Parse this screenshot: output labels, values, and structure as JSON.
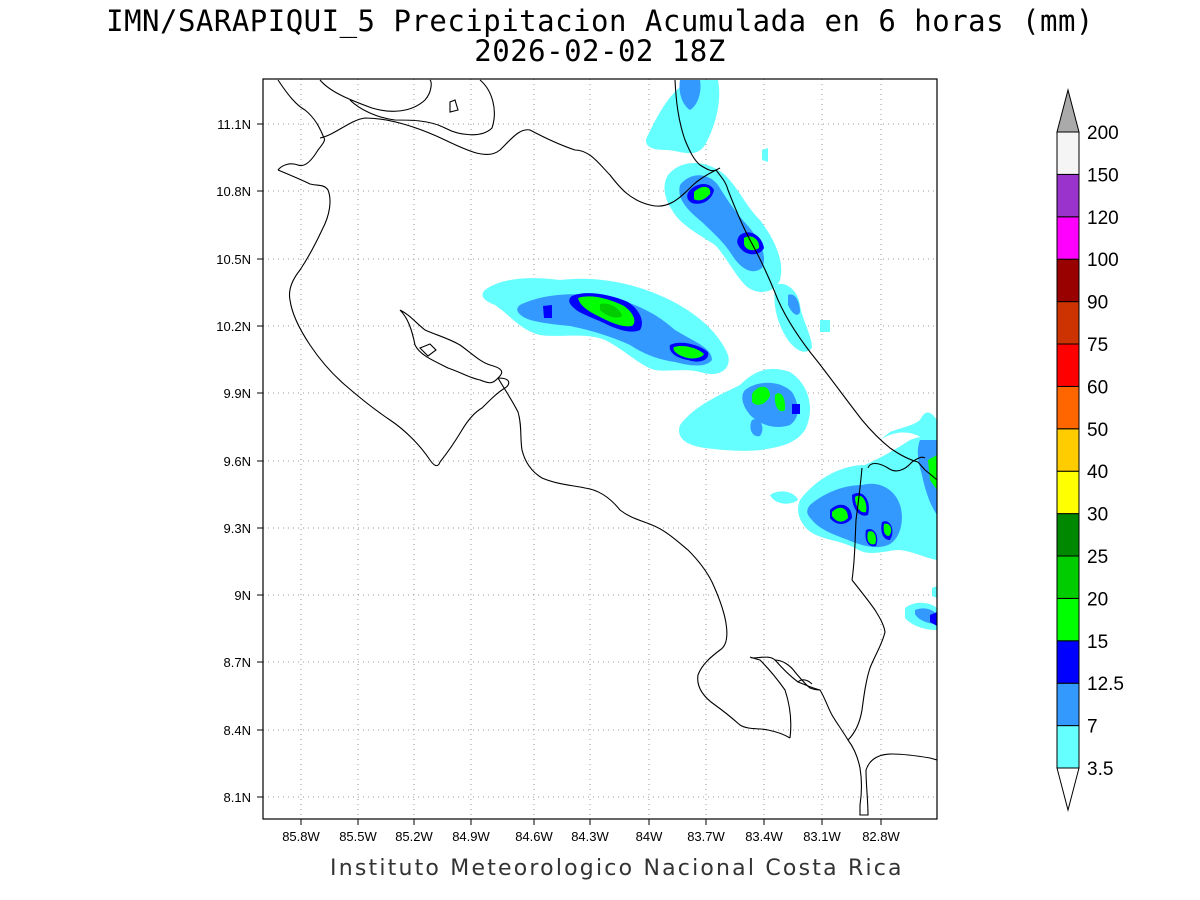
{
  "title": {
    "line1": "IMN/SARAPIQUI_5 Precipitacion Acumulada en 6 horas (mm)",
    "line2": "2026-02-02 18Z"
  },
  "footer": "Instituto Meteorologico Nacional Costa Rica",
  "map": {
    "lon_range": [
      -86.0,
      -82.9
    ],
    "lat_range": [
      8.0,
      11.3
    ],
    "lon_ticks": [
      "85.8W",
      "85.5W",
      "85.2W",
      "84.9W",
      "84.6W",
      "84.3W",
      "84W",
      "83.7W",
      "83.4W",
      "83.1W",
      "82.8W"
    ],
    "lat_ticks": [
      "11.1N",
      "10.8N",
      "10.5N",
      "10.2N",
      "9.9N",
      "9.6N",
      "9.3N",
      "9N",
      "8.7N",
      "8.4N",
      "8.1N"
    ],
    "grid": true
  },
  "colorbar": {
    "labels": [
      "3.5",
      "7",
      "12.5",
      "15",
      "20",
      "25",
      "30",
      "40",
      "50",
      "60",
      "75",
      "90",
      "100",
      "120",
      "150",
      "200"
    ],
    "colors": [
      "#ffffff",
      "#66ffff",
      "#3399ff",
      "#0000ff",
      "#00ff00",
      "#00cc00",
      "#008800",
      "#ffff00",
      "#ffcc00",
      "#ff6600",
      "#ff0000",
      "#cc3300",
      "#990000",
      "#ff00ff",
      "#9933cc",
      "#f5f5f5",
      "#aaaaaa"
    ]
  },
  "precip_colors": {
    "light": "#66ffff",
    "moderate": "#3399ff",
    "heavy": "#0000ff",
    "very_heavy": "#00ff00",
    "extreme": "#00cc00"
  }
}
